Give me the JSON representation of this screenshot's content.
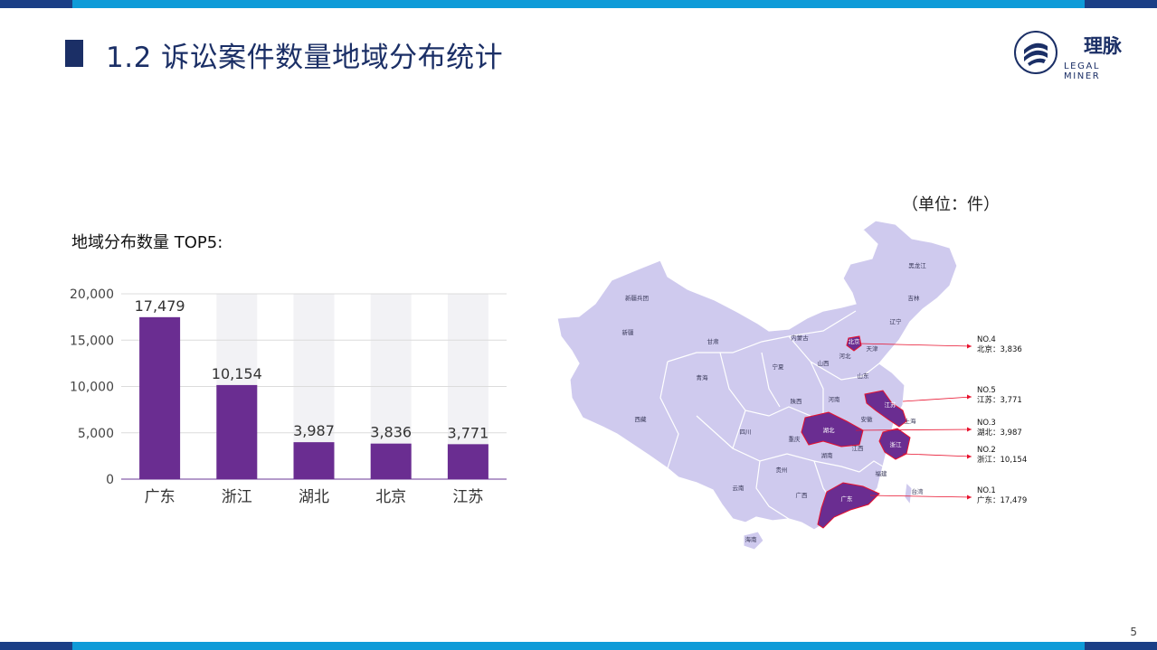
{
  "header": {
    "title": "1.2 诉讼案件数量地域分布统计",
    "logo_cn": "理脉",
    "logo_en": "LEGAL MINER"
  },
  "unit_label": "（单位：件）",
  "chart_subtitle": "地域分布数量 TOP5:",
  "page_number": "5",
  "colors": {
    "accent_blue": "#0e9bd8",
    "navy": "#1b3f86",
    "bar": "#6a2d91",
    "map_fill": "#cfcaee",
    "map_highlight": "#6a2d91",
    "callout_red": "#e8112d"
  },
  "chart_data": {
    "type": "bar",
    "categories": [
      "广东",
      "浙江",
      "湖北",
      "北京",
      "江苏"
    ],
    "values": [
      17479,
      10154,
      3987,
      3836,
      3771
    ],
    "value_labels": [
      "17,479",
      "10,154",
      "3,987",
      "3,836",
      "3,771"
    ],
    "ylim": [
      0,
      20000
    ],
    "yticks": [
      0,
      5000,
      10000,
      15000,
      20000
    ],
    "ytick_labels": [
      "0",
      "5,000",
      "10,000",
      "15,000",
      "20,000"
    ],
    "grid": true,
    "title": "",
    "xlabel": "",
    "ylabel": ""
  },
  "map": {
    "provinces": [
      {
        "name": "黑龙江",
        "highlight": false
      },
      {
        "name": "吉林",
        "highlight": false
      },
      {
        "name": "辽宁",
        "highlight": false
      },
      {
        "name": "新疆兵团",
        "highlight": false
      },
      {
        "name": "新疆",
        "highlight": false
      },
      {
        "name": "甘肃",
        "highlight": false
      },
      {
        "name": "内蒙古",
        "highlight": false
      },
      {
        "name": "天津",
        "highlight": false
      },
      {
        "name": "北京",
        "highlight": true
      },
      {
        "name": "宁夏",
        "highlight": false
      },
      {
        "name": "山西",
        "highlight": false
      },
      {
        "name": "河北",
        "highlight": false
      },
      {
        "name": "青海",
        "highlight": false
      },
      {
        "name": "山东",
        "highlight": false
      },
      {
        "name": "陕西",
        "highlight": false
      },
      {
        "name": "河南",
        "highlight": false
      },
      {
        "name": "江苏",
        "highlight": true
      },
      {
        "name": "西藏",
        "highlight": false
      },
      {
        "name": "上海",
        "highlight": false
      },
      {
        "name": "安徽",
        "highlight": false
      },
      {
        "name": "湖北",
        "highlight": true
      },
      {
        "name": "四川",
        "highlight": false
      },
      {
        "name": "重庆",
        "highlight": false
      },
      {
        "name": "浙江",
        "highlight": true
      },
      {
        "name": "江西",
        "highlight": false
      },
      {
        "name": "湖南",
        "highlight": false
      },
      {
        "name": "贵州",
        "highlight": false
      },
      {
        "name": "福建",
        "highlight": false
      },
      {
        "name": "台湾",
        "highlight": false
      },
      {
        "name": "云南",
        "highlight": false
      },
      {
        "name": "广西",
        "highlight": false
      },
      {
        "name": "广东",
        "highlight": true
      },
      {
        "name": "海南",
        "highlight": false
      }
    ],
    "callouts": [
      {
        "rank": "NO.4",
        "text": "北京：3,836"
      },
      {
        "rank": "NO.5",
        "text": "江苏：3,771"
      },
      {
        "rank": "NO.3",
        "text": "湖北：3,987"
      },
      {
        "rank": "NO.2",
        "text": "浙江：10,154"
      },
      {
        "rank": "NO.1",
        "text": "广东：17,479"
      }
    ]
  }
}
